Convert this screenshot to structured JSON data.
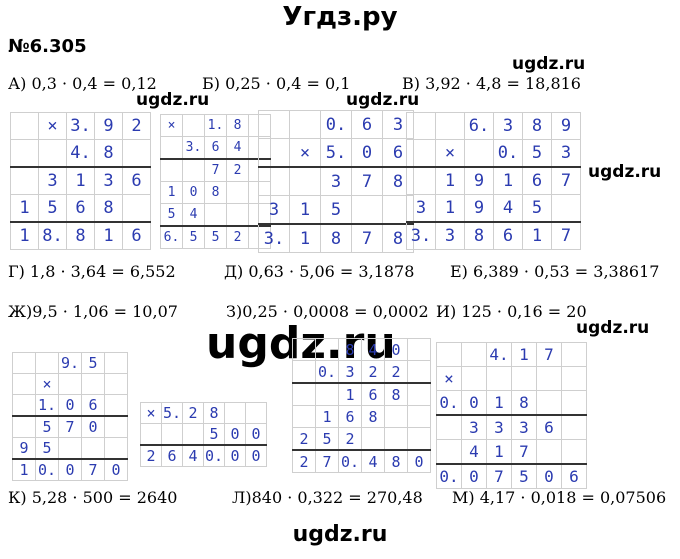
{
  "site_title": "Угдз.ру",
  "problem_number": "№6.305",
  "watermark": "ugdz.ru",
  "watermark_big": "ugdz.ru",
  "footer": "ugdz.ru",
  "equations": [
    "А) 0,3 · 0,4 = 0,12",
    "Б) 0,25 · 0,4 = 0,1",
    "В) 3,92 · 4,8 = 18,816",
    "Г) 1,8 · 3,64 = 6,552",
    "Д) 0,63 · 5,06 = 3,1878",
    "Е) 6,389 · 0,53 = 3,38617",
    "Ж)9,5 · 1,06 = 10,07",
    "З)0,25 · 0,0008 = 0,0002",
    "И) 125 · 0,16 = 20",
    "К) 5,28 · 500 = 2640",
    "Л)840 · 0,322 = 270,48",
    "М) 4,17 · 0,018 = 0,07506"
  ],
  "grids": [
    {
      "name": "grid-v",
      "rows": [
        [
          "",
          "×",
          "3.",
          "9",
          "2"
        ],
        [
          "",
          "",
          "4.",
          "8",
          ""
        ],
        [
          "",
          "3",
          "1",
          "3",
          "6"
        ],
        [
          "1",
          "5",
          "6",
          "8",
          ""
        ],
        [
          "1",
          "8.",
          "8",
          "1",
          "6"
        ]
      ]
    },
    {
      "name": "grid-g",
      "rows": [
        [
          "×",
          "",
          "1.",
          "8",
          ""
        ],
        [
          "",
          "3.",
          "6",
          "4",
          ""
        ],
        [
          "",
          "",
          "7",
          "2",
          ""
        ],
        [
          "1",
          "0",
          "8",
          "",
          ""
        ],
        [
          "5",
          "4",
          "",
          "",
          ""
        ],
        [
          "6.",
          "5",
          "5",
          "2",
          ""
        ]
      ]
    },
    {
      "name": "grid-d",
      "rows": [
        [
          "",
          "",
          "0.",
          "6",
          "3"
        ],
        [
          "",
          "×",
          "5.",
          "0",
          "6"
        ],
        [
          "",
          "",
          "3",
          "7",
          "8"
        ],
        [
          "3",
          "1",
          "5",
          "",
          ""
        ],
        [
          "3.",
          "1",
          "8",
          "7",
          "8"
        ]
      ]
    },
    {
      "name": "grid-e",
      "rows": [
        [
          "",
          "",
          "6.",
          "3",
          "8",
          "9"
        ],
        [
          "",
          "×",
          "",
          "0.",
          "5",
          "3"
        ],
        [
          "",
          "1",
          "9",
          "1",
          "6",
          "7"
        ],
        [
          "3",
          "1",
          "9",
          "4",
          "5",
          ""
        ],
        [
          "3.",
          "3",
          "8",
          "6",
          "1",
          "7"
        ]
      ]
    },
    {
      "name": "grid-zh",
      "rows": [
        [
          "",
          "",
          "9.",
          "5"
        ],
        [
          "",
          "×",
          "",
          ""
        ],
        [
          "",
          "1.",
          "0",
          "6"
        ],
        [
          "",
          "5",
          "7",
          "0"
        ],
        [
          "9",
          "5",
          "",
          ""
        ],
        [
          "1",
          "0.",
          "0",
          "7",
          "0"
        ]
      ]
    },
    {
      "name": "grid-k",
      "rows": [
        [
          "×",
          "5.",
          "2",
          "8",
          "",
          ""
        ],
        [
          "",
          "",
          "",
          "5",
          "0",
          "0"
        ],
        [
          "2",
          "6",
          "4",
          "0.",
          "0",
          "0"
        ]
      ]
    },
    {
      "name": "grid-l",
      "rows": [
        [
          "",
          "",
          "8",
          "4",
          "0"
        ],
        [
          "",
          "0.",
          "3",
          "2",
          "2"
        ],
        [
          "",
          "",
          "1",
          "6",
          "8"
        ],
        [
          "",
          "1",
          "6",
          "8",
          ""
        ],
        [
          "2",
          "5",
          "2",
          "",
          ""
        ],
        [
          "2",
          "7",
          "0.",
          "4",
          "8",
          "0"
        ]
      ]
    },
    {
      "name": "grid-m",
      "rows": [
        [
          "",
          "",
          "4.",
          "1",
          "7"
        ],
        [
          "×",
          "",
          "",
          "",
          ""
        ],
        [
          "0.",
          "0",
          "1",
          "8",
          ""
        ],
        [
          "",
          "3",
          "3",
          "3",
          "6"
        ],
        [
          "",
          "4",
          "1",
          "7",
          ""
        ],
        [
          "0.",
          "0",
          "7",
          "5",
          "0",
          "6"
        ]
      ]
    }
  ]
}
